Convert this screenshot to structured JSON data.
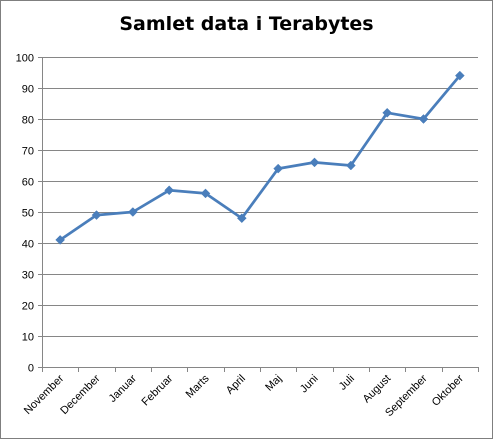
{
  "chart_data": {
    "type": "line",
    "title": "Samlet data i Terabytes",
    "xlabel": "",
    "ylabel": "",
    "categories": [
      "November",
      "December",
      "Januar",
      "Februar",
      "Marts",
      "April",
      "Maj",
      "Juni",
      "Juli",
      "August",
      "September",
      "Oktober"
    ],
    "series": [
      {
        "values": [
          41,
          49,
          50,
          57,
          56,
          48,
          64,
          66,
          65,
          82,
          80,
          94
        ],
        "color": "#4a7ebb",
        "marker": "diamond"
      }
    ],
    "ylim": [
      0,
      100
    ],
    "yticks": [
      "0",
      "10",
      "20",
      "30",
      "40",
      "50",
      "60",
      "70",
      "80",
      "90",
      "100"
    ],
    "grid": true,
    "legend": "none"
  }
}
